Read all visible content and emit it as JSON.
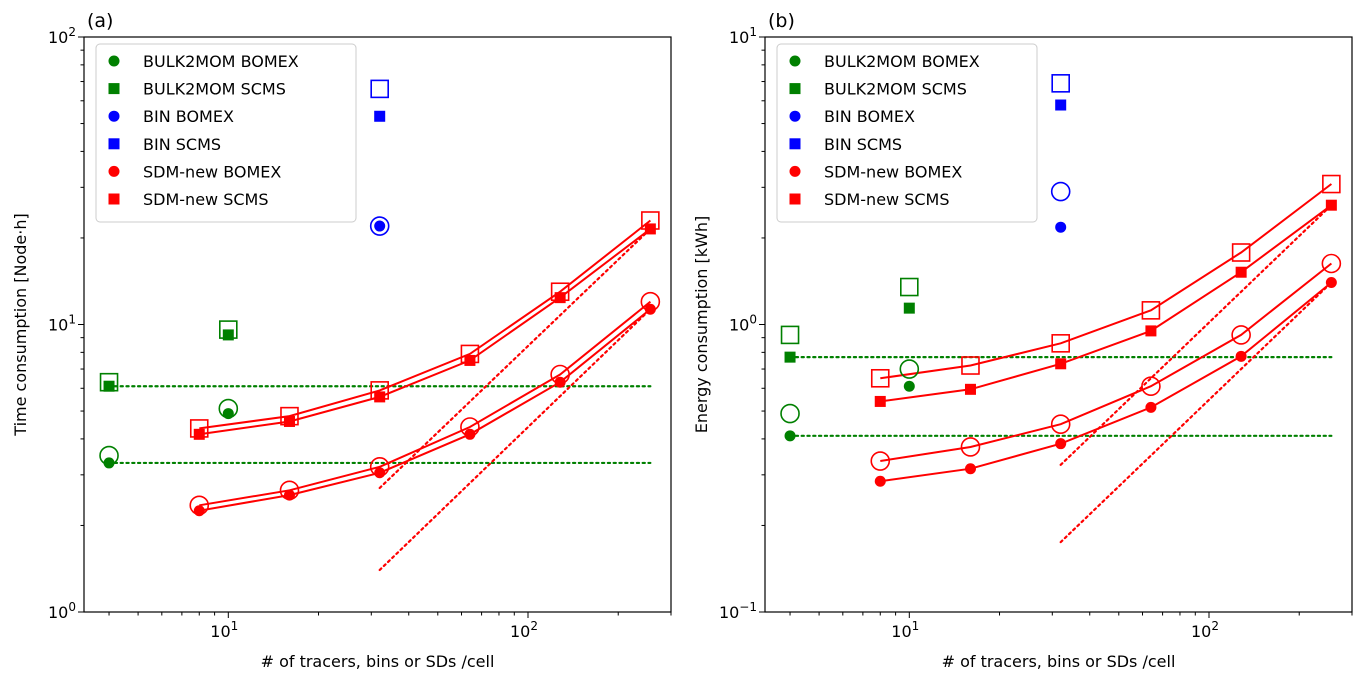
{
  "chart_data": [
    {
      "panel_label": "(a)",
      "type": "scatter",
      "xlabel": "# of tracers, bins or SDs /cell",
      "ylabel": "Time consumption [Node·h]",
      "xscale": "log",
      "yscale": "log",
      "xlim": [
        3.3,
        300
      ],
      "ylim": [
        1,
        100
      ],
      "x_ticks": [
        {
          "value": 10,
          "base": "10",
          "exp": "1"
        },
        {
          "value": 100,
          "base": "10",
          "exp": "2"
        }
      ],
      "y_ticks": [
        {
          "value": 1,
          "base": "10",
          "exp": "0"
        },
        {
          "value": 10,
          "base": "10",
          "exp": "1"
        },
        {
          "value": 100,
          "base": "10",
          "exp": "2"
        }
      ],
      "grid": false,
      "legend_position": "top-left",
      "legend": [
        {
          "label": "BULK2MOM BOMEX",
          "color": "#008000",
          "marker": "circle"
        },
        {
          "label": "BULK2MOM SCMS",
          "color": "#008000",
          "marker": "square"
        },
        {
          "label": "BIN              BOMEX",
          "color": "#0000ff",
          "marker": "circle"
        },
        {
          "label": "BIN              SCMS",
          "color": "#0000ff",
          "marker": "square"
        },
        {
          "label": "SDM-new    BOMEX",
          "color": "#ff0000",
          "marker": "circle"
        },
        {
          "label": "SDM-new    SCMS",
          "color": "#ff0000",
          "marker": "square"
        }
      ],
      "series": [
        {
          "color": "#008000",
          "marker": "circle",
          "fill": "open",
          "line": false,
          "x": [
            4,
            10
          ],
          "y": [
            3.5,
            5.1
          ]
        },
        {
          "color": "#008000",
          "marker": "circle",
          "fill": "filled",
          "line": false,
          "x": [
            4,
            10
          ],
          "y": [
            3.3,
            4.9
          ]
        },
        {
          "color": "#008000",
          "marker": "square",
          "fill": "open",
          "line": false,
          "x": [
            4,
            10
          ],
          "y": [
            6.3,
            9.6
          ]
        },
        {
          "color": "#008000",
          "marker": "square",
          "fill": "filled",
          "line": false,
          "x": [
            4,
            10
          ],
          "y": [
            6.1,
            9.2
          ]
        },
        {
          "color": "#0000ff",
          "marker": "circle",
          "fill": "open",
          "line": false,
          "x": [
            32
          ],
          "y": [
            22
          ]
        },
        {
          "color": "#0000ff",
          "marker": "circle",
          "fill": "filled",
          "line": false,
          "x": [
            32
          ],
          "y": [
            22
          ]
        },
        {
          "color": "#0000ff",
          "marker": "square",
          "fill": "open",
          "line": false,
          "x": [
            32
          ],
          "y": [
            66
          ]
        },
        {
          "color": "#0000ff",
          "marker": "square",
          "fill": "filled",
          "line": false,
          "x": [
            32
          ],
          "y": [
            53
          ]
        },
        {
          "color": "#ff0000",
          "marker": "circle",
          "fill": "open",
          "line": true,
          "x": [
            8,
            16,
            32,
            64,
            128,
            256
          ],
          "y": [
            2.35,
            2.65,
            3.2,
            4.4,
            6.7,
            12
          ]
        },
        {
          "color": "#ff0000",
          "marker": "circle",
          "fill": "filled",
          "line": true,
          "x": [
            8,
            16,
            32,
            64,
            128,
            256
          ],
          "y": [
            2.25,
            2.55,
            3.05,
            4.15,
            6.3,
            11.3
          ]
        },
        {
          "color": "#ff0000",
          "marker": "square",
          "fill": "open",
          "line": true,
          "x": [
            8,
            16,
            32,
            64,
            128,
            256
          ],
          "y": [
            4.35,
            4.8,
            5.9,
            7.9,
            13,
            23
          ]
        },
        {
          "color": "#ff0000",
          "marker": "square",
          "fill": "filled",
          "line": true,
          "x": [
            8,
            16,
            32,
            64,
            128,
            256
          ],
          "y": [
            4.15,
            4.6,
            5.6,
            7.5,
            12.4,
            21.5
          ]
        }
      ],
      "reference_lines": [
        {
          "color": "#008000",
          "style": "dotted",
          "x": [
            4,
            256
          ],
          "y": [
            6.1,
            6.1
          ]
        },
        {
          "color": "#008000",
          "style": "dotted",
          "x": [
            4,
            256
          ],
          "y": [
            3.3,
            3.3
          ]
        },
        {
          "color": "#ff0000",
          "style": "dotted",
          "x": [
            32,
            256
          ],
          "y": [
            2.7,
            21.5
          ]
        },
        {
          "color": "#ff0000",
          "style": "dotted",
          "x": [
            32,
            256
          ],
          "y": [
            1.4,
            11.3
          ]
        }
      ]
    },
    {
      "panel_label": "(b)",
      "type": "scatter",
      "xlabel": "# of tracers, bins or SDs /cell",
      "ylabel": "Energy consumption [kWh]",
      "xscale": "log",
      "yscale": "log",
      "xlim": [
        3.3,
        300
      ],
      "ylim": [
        0.1,
        10
      ],
      "x_ticks": [
        {
          "value": 10,
          "base": "10",
          "exp": "1"
        },
        {
          "value": 100,
          "base": "10",
          "exp": "2"
        }
      ],
      "y_ticks": [
        {
          "value": 0.1,
          "base": "10",
          "exp": "−1"
        },
        {
          "value": 1,
          "base": "10",
          "exp": "0"
        },
        {
          "value": 10,
          "base": "10",
          "exp": "1"
        }
      ],
      "grid": false,
      "legend_position": "top-left",
      "legend": [
        {
          "label": "BULK2MOM BOMEX",
          "color": "#008000",
          "marker": "circle"
        },
        {
          "label": "BULK2MOM SCMS",
          "color": "#008000",
          "marker": "square"
        },
        {
          "label": "BIN              BOMEX",
          "color": "#0000ff",
          "marker": "circle"
        },
        {
          "label": "BIN              SCMS",
          "color": "#0000ff",
          "marker": "square"
        },
        {
          "label": "SDM-new    BOMEX",
          "color": "#ff0000",
          "marker": "circle"
        },
        {
          "label": "SDM-new    SCMS",
          "color": "#ff0000",
          "marker": "square"
        }
      ],
      "series": [
        {
          "color": "#008000",
          "marker": "circle",
          "fill": "open",
          "line": false,
          "x": [
            4,
            10
          ],
          "y": [
            0.49,
            0.7
          ]
        },
        {
          "color": "#008000",
          "marker": "circle",
          "fill": "filled",
          "line": false,
          "x": [
            4,
            10
          ],
          "y": [
            0.41,
            0.61
          ]
        },
        {
          "color": "#008000",
          "marker": "square",
          "fill": "open",
          "line": false,
          "x": [
            4,
            10
          ],
          "y": [
            0.92,
            1.35
          ]
        },
        {
          "color": "#008000",
          "marker": "square",
          "fill": "filled",
          "line": false,
          "x": [
            4,
            10
          ],
          "y": [
            0.77,
            1.14
          ]
        },
        {
          "color": "#0000ff",
          "marker": "circle",
          "fill": "open",
          "line": false,
          "x": [
            32
          ],
          "y": [
            2.9
          ]
        },
        {
          "color": "#0000ff",
          "marker": "circle",
          "fill": "filled",
          "line": false,
          "x": [
            32
          ],
          "y": [
            2.18
          ]
        },
        {
          "color": "#0000ff",
          "marker": "square",
          "fill": "open",
          "line": false,
          "x": [
            32
          ],
          "y": [
            6.9
          ]
        },
        {
          "color": "#0000ff",
          "marker": "square",
          "fill": "filled",
          "line": false,
          "x": [
            32
          ],
          "y": [
            5.8
          ]
        },
        {
          "color": "#ff0000",
          "marker": "circle",
          "fill": "open",
          "line": true,
          "x": [
            8,
            16,
            32,
            64,
            128,
            256
          ],
          "y": [
            0.335,
            0.375,
            0.45,
            0.61,
            0.92,
            1.63
          ]
        },
        {
          "color": "#ff0000",
          "marker": "circle",
          "fill": "filled",
          "line": true,
          "x": [
            8,
            16,
            32,
            64,
            128,
            256
          ],
          "y": [
            0.285,
            0.315,
            0.385,
            0.515,
            0.775,
            1.4
          ]
        },
        {
          "color": "#ff0000",
          "marker": "square",
          "fill": "open",
          "line": true,
          "x": [
            8,
            16,
            32,
            64,
            128,
            256
          ],
          "y": [
            0.65,
            0.72,
            0.86,
            1.12,
            1.78,
            3.08
          ]
        },
        {
          "color": "#ff0000",
          "marker": "square",
          "fill": "filled",
          "line": true,
          "x": [
            8,
            16,
            32,
            64,
            128,
            256
          ],
          "y": [
            0.54,
            0.595,
            0.73,
            0.95,
            1.52,
            2.6
          ]
        }
      ],
      "reference_lines": [
        {
          "color": "#008000",
          "style": "dotted",
          "x": [
            4,
            256
          ],
          "y": [
            0.77,
            0.77
          ]
        },
        {
          "color": "#008000",
          "style": "dotted",
          "x": [
            4,
            256
          ],
          "y": [
            0.41,
            0.41
          ]
        },
        {
          "color": "#ff0000",
          "style": "dotted",
          "x": [
            32,
            256
          ],
          "y": [
            0.325,
            2.6
          ]
        },
        {
          "color": "#ff0000",
          "style": "dotted",
          "x": [
            32,
            256
          ],
          "y": [
            0.175,
            1.4
          ]
        }
      ]
    }
  ]
}
